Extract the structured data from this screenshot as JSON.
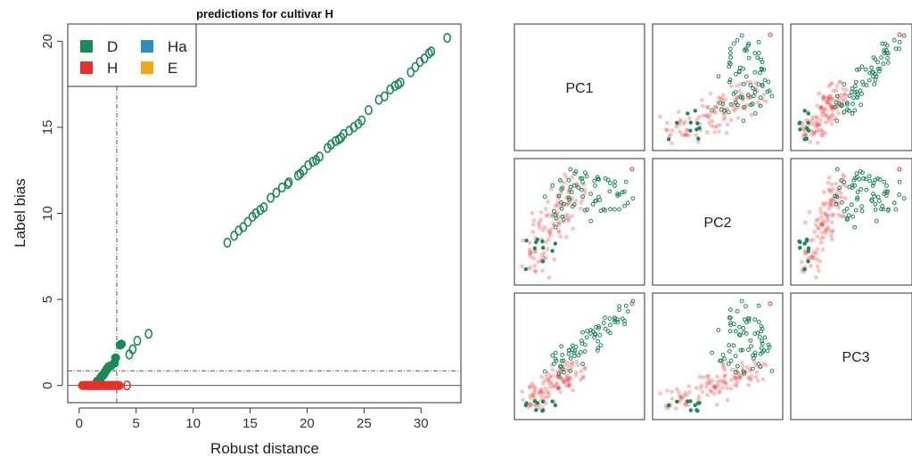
{
  "chart_data": [
    {
      "type": "scatter",
      "title": "predictions for cultivar H",
      "xlabel": "Robust distance",
      "ylabel": "Label bias",
      "xlim": [
        -1,
        33.5
      ],
      "ylim": [
        -1,
        21
      ],
      "xticks": [
        0,
        5,
        10,
        15,
        20,
        25,
        30
      ],
      "yticks": [
        0,
        5,
        10,
        15,
        20
      ],
      "cutoff_x": 3.3,
      "cutoff_y": 0.85,
      "zero_line_y": 0,
      "legend_position": "top-left",
      "legend": [
        {
          "label": "D",
          "color": "#1a8a5a"
        },
        {
          "label": "H",
          "color": "#e8302a"
        },
        {
          "label": "Ha",
          "color": "#2b8fc4"
        },
        {
          "label": "E",
          "color": "#f0a818"
        }
      ],
      "series": [
        {
          "name": "D",
          "filled": true,
          "points": [
            [
              1.4,
              0.05
            ],
            [
              1.6,
              0.25
            ],
            [
              1.8,
              0.35
            ],
            [
              1.9,
              0.45
            ],
            [
              2.0,
              0.55
            ],
            [
              2.1,
              0.6
            ],
            [
              2.2,
              0.7
            ],
            [
              2.3,
              0.8
            ],
            [
              2.4,
              0.9
            ],
            [
              2.5,
              1.0
            ],
            [
              2.6,
              1.1
            ],
            [
              2.8,
              1.15
            ],
            [
              3.1,
              1.3
            ],
            [
              3.2,
              1.6
            ],
            [
              3.6,
              2.35
            ],
            [
              3.7,
              2.4
            ]
          ]
        },
        {
          "name": "D",
          "filled": false,
          "points": [
            [
              4.4,
              1.8
            ],
            [
              4.7,
              2.1
            ],
            [
              5.1,
              2.6
            ],
            [
              6.1,
              3.0
            ],
            [
              13.0,
              8.3
            ],
            [
              13.6,
              8.7
            ],
            [
              14.0,
              9.0
            ],
            [
              14.4,
              9.2
            ],
            [
              14.8,
              9.5
            ],
            [
              15.2,
              9.8
            ],
            [
              15.5,
              10.0
            ],
            [
              15.9,
              10.2
            ],
            [
              16.2,
              10.35
            ],
            [
              16.8,
              10.9
            ],
            [
              17.3,
              11.2
            ],
            [
              17.8,
              11.5
            ],
            [
              18.3,
              11.7
            ],
            [
              18.4,
              11.8
            ],
            [
              19.2,
              12.2
            ],
            [
              19.4,
              12.3
            ],
            [
              19.7,
              12.5
            ],
            [
              20.1,
              12.8
            ],
            [
              20.5,
              13.0
            ],
            [
              20.8,
              13.1
            ],
            [
              21.1,
              13.3
            ],
            [
              21.8,
              13.8
            ],
            [
              22.1,
              14.0
            ],
            [
              22.5,
              14.2
            ],
            [
              22.8,
              14.3
            ],
            [
              23.0,
              14.4
            ],
            [
              23.2,
              14.6
            ],
            [
              23.7,
              14.8
            ],
            [
              24.1,
              15.0
            ],
            [
              24.5,
              15.2
            ],
            [
              24.8,
              15.4
            ],
            [
              25.4,
              16.0
            ],
            [
              26.3,
              16.6
            ],
            [
              26.8,
              16.8
            ],
            [
              27.3,
              17.2
            ],
            [
              27.7,
              17.4
            ],
            [
              28.0,
              17.5
            ],
            [
              28.2,
              17.6
            ],
            [
              29.1,
              18.2
            ],
            [
              29.5,
              18.5
            ],
            [
              29.9,
              18.8
            ],
            [
              30.3,
              19.0
            ],
            [
              30.7,
              19.3
            ],
            [
              30.9,
              19.4
            ],
            [
              32.3,
              20.2
            ]
          ]
        },
        {
          "name": "H",
          "filled": true,
          "points": [
            [
              0.3,
              0
            ],
            [
              0.5,
              0
            ],
            [
              0.6,
              0
            ],
            [
              0.7,
              0
            ],
            [
              0.8,
              0
            ],
            [
              0.9,
              0
            ],
            [
              1.0,
              0
            ],
            [
              1.1,
              0
            ],
            [
              1.2,
              0
            ],
            [
              1.3,
              0
            ],
            [
              1.4,
              0
            ],
            [
              1.5,
              0
            ],
            [
              1.6,
              0
            ],
            [
              1.7,
              0
            ],
            [
              1.8,
              0
            ],
            [
              1.9,
              0
            ],
            [
              2.0,
              0
            ],
            [
              2.1,
              0
            ],
            [
              2.2,
              0
            ],
            [
              2.3,
              0
            ],
            [
              2.4,
              0
            ],
            [
              2.5,
              0
            ],
            [
              2.6,
              0
            ],
            [
              2.7,
              0
            ],
            [
              2.8,
              0
            ],
            [
              2.9,
              0
            ],
            [
              3.0,
              0
            ],
            [
              3.1,
              0
            ],
            [
              3.2,
              0
            ],
            [
              3.3,
              0
            ],
            [
              3.4,
              0
            ],
            [
              3.5,
              0
            ]
          ]
        },
        {
          "name": "H",
          "filled": false,
          "points": [
            [
              4.2,
              0
            ]
          ]
        }
      ]
    },
    {
      "type": "scatter",
      "panels": [
        "PC1",
        "PC2",
        "PC3"
      ],
      "series": [
        {
          "name": "D",
          "color": "#1a8a5a"
        },
        {
          "name": "H",
          "color": "#e8302a"
        }
      ]
    }
  ]
}
